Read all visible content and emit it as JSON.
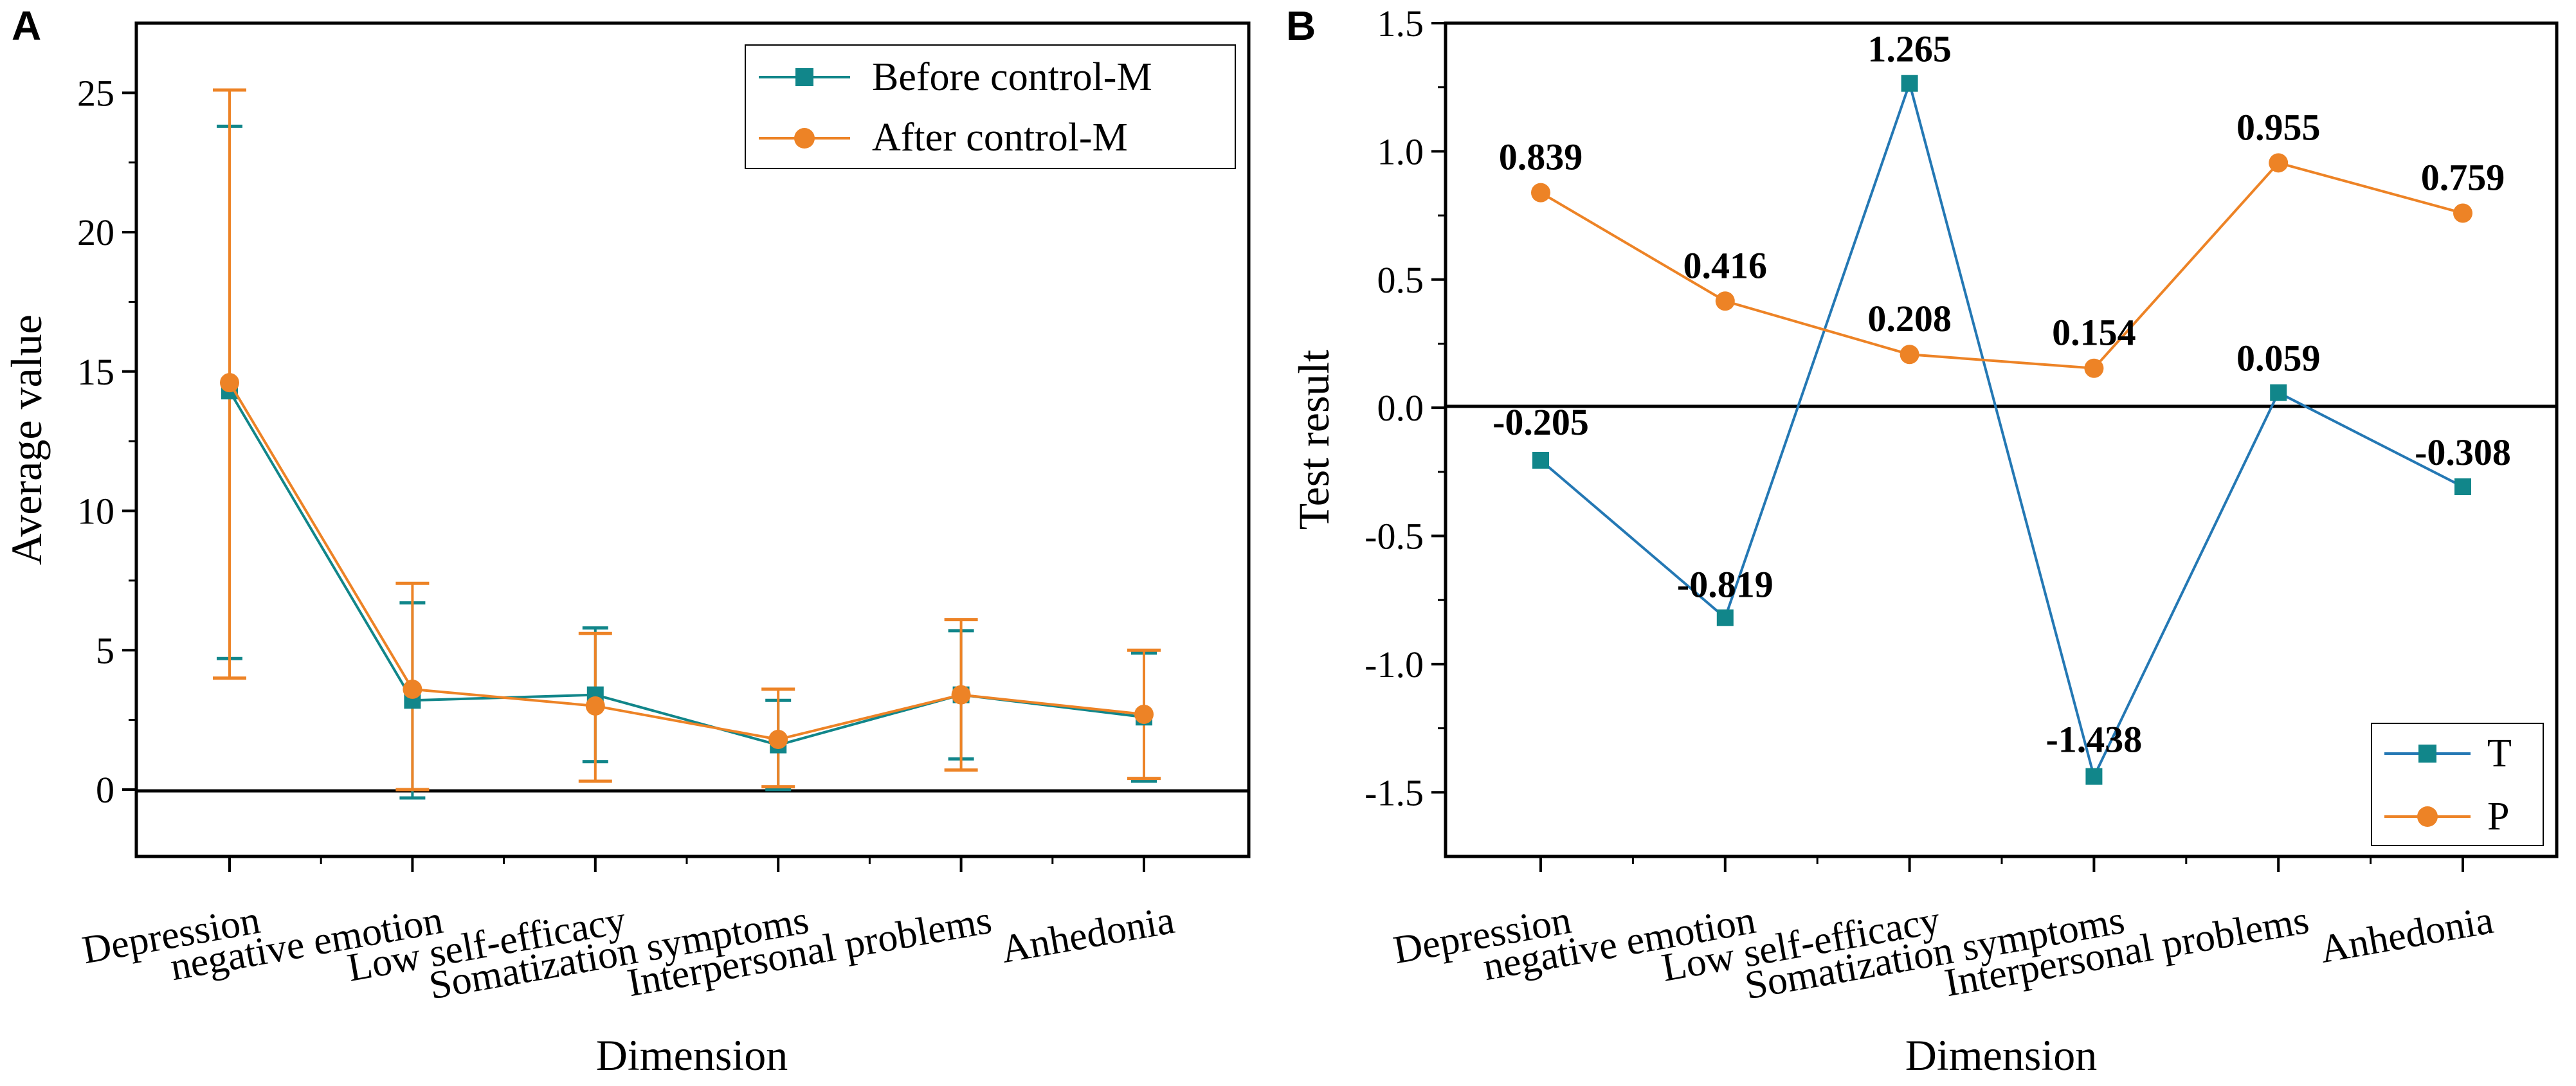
{
  "chart_data": [
    {
      "panel": "A",
      "type": "line",
      "categories": [
        "Depression",
        "negative emotion",
        "Low self-efficacy",
        "Somatization symptoms",
        "Interpersonal problems",
        "Anhedonia"
      ],
      "series": [
        {
          "name": "Before control-M",
          "color": "#11868a",
          "marker": "square",
          "values": [
            14.3,
            3.2,
            3.4,
            1.6,
            3.4,
            2.6
          ],
          "error_low": [
            4.7,
            -0.3,
            1.0,
            0.0,
            1.1,
            0.3
          ],
          "error_high": [
            23.8,
            6.7,
            5.8,
            3.2,
            5.7,
            4.9
          ]
        },
        {
          "name": "After control-M",
          "color": "#ed8326",
          "marker": "circle",
          "values": [
            14.6,
            3.6,
            3.0,
            1.8,
            3.4,
            2.7
          ],
          "error_low": [
            4.0,
            0.0,
            0.3,
            0.1,
            0.7,
            0.4
          ],
          "error_high": [
            25.1,
            7.4,
            5.6,
            3.6,
            6.1,
            5.0
          ]
        }
      ],
      "xlabel": "Dimension",
      "ylabel": "Average value",
      "ylim": [
        -2.4,
        27.5
      ],
      "yticks": [
        "0",
        "5",
        "10",
        "15",
        "20",
        "25"
      ],
      "legend": "top-right",
      "zero_line": true
    },
    {
      "panel": "B",
      "type": "line",
      "categories": [
        "Depression",
        "negative emotion",
        "Low self-efficacy",
        "Somatization symptoms",
        "Interpersonal problems",
        "Anhedonia"
      ],
      "series": [
        {
          "name": "T",
          "color": "#2478b4",
          "marker": "square",
          "values": [
            -0.205,
            -0.819,
            1.265,
            -1.438,
            0.059,
            -0.308
          ],
          "labels": [
            "-0.205",
            "-0.819",
            "1.265",
            "-1.438",
            "0.059",
            "-0.308"
          ]
        },
        {
          "name": "P",
          "color": "#ed8326",
          "marker": "circle",
          "values": [
            0.839,
            0.416,
            0.208,
            0.154,
            0.955,
            0.759
          ],
          "labels": [
            "0.839",
            "0.416",
            "0.208",
            "0.154",
            "0.955",
            "0.759"
          ]
        }
      ],
      "xlabel": "Dimension",
      "ylabel": "Test result",
      "ylim": [
        -1.75,
        1.5
      ],
      "yticks": [
        "1.5",
        "1.0",
        "0.5",
        "0.0",
        "-0.5",
        "-1.0",
        "-1.5"
      ],
      "legend": "bottom-right",
      "zero_line": true
    }
  ]
}
